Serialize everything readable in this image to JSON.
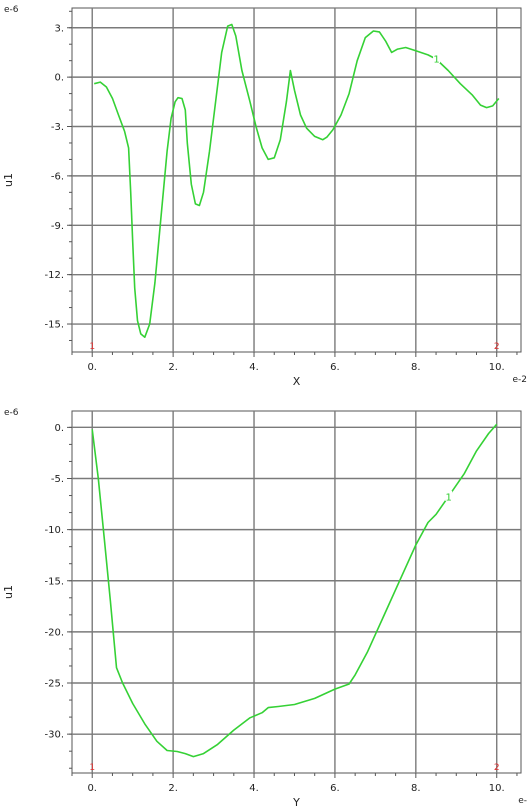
{
  "chart_data": [
    {
      "type": "line",
      "xlabel": "X",
      "ylabel": "u1",
      "x_exponent_label": "e-2",
      "y_exponent_label": "e-6",
      "xlim": [
        -0.5,
        10.6
      ],
      "ylim": [
        -16.7,
        4.2
      ],
      "x_ticks": [
        0,
        2,
        4,
        6,
        8,
        10
      ],
      "x_tick_labels": [
        "0.",
        "2.",
        "4.",
        "6.",
        "8.",
        "10."
      ],
      "y_ticks": [
        3,
        0,
        -3,
        -6,
        -9,
        -12,
        -15
      ],
      "y_tick_labels": [
        "3.",
        "0.",
        "-3.",
        "-6.",
        "-9.",
        "-12.",
        "-15."
      ],
      "grid": true,
      "line_color": "#35d135",
      "endpoint_markers": [
        {
          "x": 0,
          "label": "1"
        },
        {
          "x": 10,
          "label": "2"
        }
      ],
      "series": [
        {
          "curve_label": "1",
          "curve_label_at": 8.65,
          "points": [
            [
              0.05,
              -0.4
            ],
            [
              0.2,
              -0.3
            ],
            [
              0.35,
              -0.6
            ],
            [
              0.5,
              -1.3
            ],
            [
              0.65,
              -2.3
            ],
            [
              0.8,
              -3.3
            ],
            [
              0.9,
              -4.3
            ],
            [
              0.95,
              -7.0
            ],
            [
              1.0,
              -10.0
            ],
            [
              1.05,
              -12.8
            ],
            [
              1.12,
              -14.8
            ],
            [
              1.2,
              -15.6
            ],
            [
              1.3,
              -15.8
            ],
            [
              1.42,
              -15.0
            ],
            [
              1.55,
              -12.5
            ],
            [
              1.7,
              -8.5
            ],
            [
              1.85,
              -4.5
            ],
            [
              1.95,
              -2.5
            ],
            [
              2.05,
              -1.5
            ],
            [
              2.12,
              -1.25
            ],
            [
              2.22,
              -1.3
            ],
            [
              2.3,
              -2.0
            ],
            [
              2.35,
              -4.0
            ],
            [
              2.45,
              -6.5
            ],
            [
              2.55,
              -7.7
            ],
            [
              2.65,
              -7.8
            ],
            [
              2.75,
              -7.0
            ],
            [
              2.9,
              -4.5
            ],
            [
              3.05,
              -1.5
            ],
            [
              3.2,
              1.5
            ],
            [
              3.35,
              3.1
            ],
            [
              3.45,
              3.2
            ],
            [
              3.55,
              2.5
            ],
            [
              3.7,
              0.4
            ],
            [
              3.9,
              -1.5
            ],
            [
              4.05,
              -3.0
            ],
            [
              4.2,
              -4.3
            ],
            [
              4.35,
              -5.0
            ],
            [
              4.5,
              -4.9
            ],
            [
              4.65,
              -3.8
            ],
            [
              4.8,
              -1.5
            ],
            [
              4.9,
              0.4
            ],
            [
              5.0,
              -0.8
            ],
            [
              5.15,
              -2.3
            ],
            [
              5.3,
              -3.1
            ],
            [
              5.5,
              -3.6
            ],
            [
              5.7,
              -3.8
            ],
            [
              5.8,
              -3.65
            ],
            [
              5.95,
              -3.2
            ],
            [
              6.15,
              -2.3
            ],
            [
              6.35,
              -1.0
            ],
            [
              6.55,
              1.0
            ],
            [
              6.75,
              2.4
            ],
            [
              6.95,
              2.8
            ],
            [
              7.1,
              2.75
            ],
            [
              7.25,
              2.2
            ],
            [
              7.4,
              1.5
            ],
            [
              7.55,
              1.7
            ],
            [
              7.75,
              1.8
            ],
            [
              8.0,
              1.6
            ],
            [
              8.3,
              1.35
            ],
            [
              8.5,
              1.1
            ],
            [
              8.8,
              0.4
            ],
            [
              9.1,
              -0.4
            ],
            [
              9.4,
              -1.1
            ],
            [
              9.6,
              -1.7
            ],
            [
              9.75,
              -1.85
            ],
            [
              9.9,
              -1.75
            ],
            [
              10.05,
              -1.3
            ]
          ]
        }
      ]
    },
    {
      "type": "line",
      "xlabel": "Y",
      "ylabel": "u1",
      "x_exponent_label": "e-",
      "y_exponent_label": "e-6",
      "xlim": [
        -0.5,
        10.6
      ],
      "ylim": [
        -33.8,
        1.6
      ],
      "x_ticks": [
        0,
        2,
        4,
        6,
        8,
        10
      ],
      "x_tick_labels": [
        "0.",
        "2.",
        "4.",
        "6.",
        "8.",
        "10."
      ],
      "y_ticks": [
        0,
        -5,
        -10,
        -15,
        -20,
        -25,
        -30
      ],
      "y_tick_labels": [
        "0.",
        "-5.",
        "-10.",
        "-15.",
        "-20.",
        "-25.",
        "-30."
      ],
      "grid": true,
      "line_color": "#35d135",
      "endpoint_markers": [
        {
          "x": 0,
          "label": "1"
        },
        {
          "x": 10,
          "label": "2"
        }
      ],
      "series": [
        {
          "curve_label": "1",
          "curve_label_at": 9.0,
          "points": [
            [
              0.0,
              -0.2
            ],
            [
              0.15,
              -5.0
            ],
            [
              0.3,
              -11.0
            ],
            [
              0.45,
              -17.0
            ],
            [
              0.6,
              -23.5
            ],
            [
              0.75,
              -25.0
            ],
            [
              1.0,
              -27.0
            ],
            [
              1.3,
              -29.0
            ],
            [
              1.6,
              -30.7
            ],
            [
              1.85,
              -31.6
            ],
            [
              2.1,
              -31.7
            ],
            [
              2.3,
              -31.9
            ],
            [
              2.5,
              -32.2
            ],
            [
              2.75,
              -31.9
            ],
            [
              3.1,
              -31.0
            ],
            [
              3.5,
              -29.6
            ],
            [
              3.9,
              -28.4
            ],
            [
              4.2,
              -27.9
            ],
            [
              4.35,
              -27.4
            ],
            [
              4.6,
              -27.3
            ],
            [
              5.0,
              -27.1
            ],
            [
              5.5,
              -26.5
            ],
            [
              6.0,
              -25.6
            ],
            [
              6.35,
              -25.1
            ],
            [
              6.5,
              -24.2
            ],
            [
              6.8,
              -22.0
            ],
            [
              7.2,
              -18.5
            ],
            [
              7.6,
              -15.0
            ],
            [
              8.0,
              -11.5
            ],
            [
              8.3,
              -9.3
            ],
            [
              8.5,
              -8.5
            ],
            [
              8.8,
              -6.8
            ],
            [
              9.2,
              -4.5
            ],
            [
              9.5,
              -2.3
            ],
            [
              9.8,
              -0.6
            ],
            [
              10.0,
              0.3
            ]
          ]
        }
      ]
    }
  ]
}
